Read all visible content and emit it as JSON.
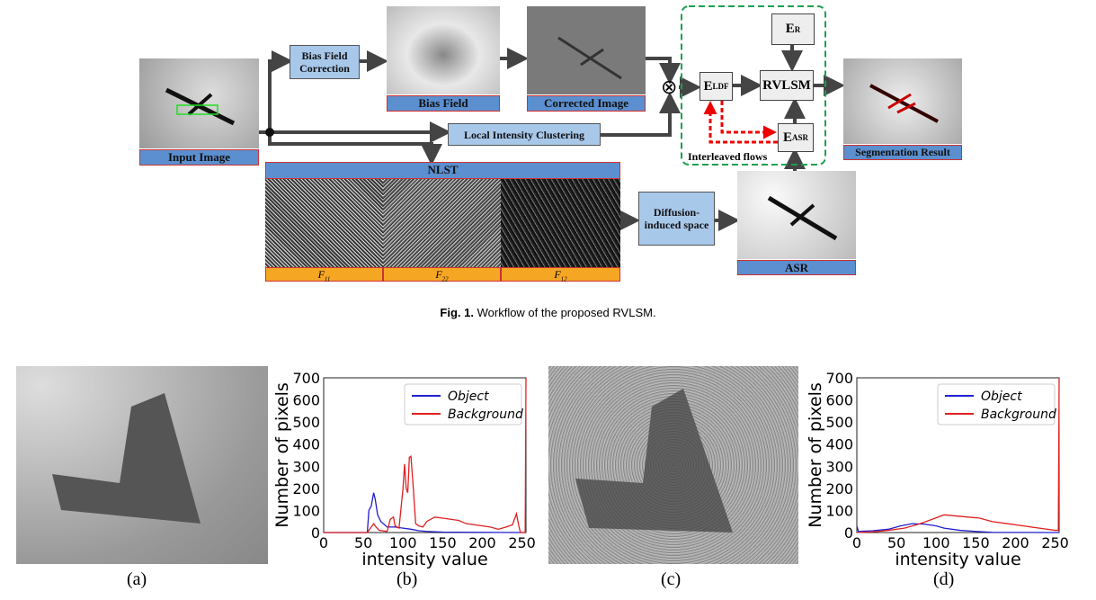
{
  "figure1": {
    "input_label": "Input Image",
    "bias_correction": "Bias Field Correction",
    "bias_field_label": "Bias Field",
    "corrected_label": "Corrected Image",
    "lic": "Local Intensity Clustering",
    "nlst": "NLST",
    "f_labels": [
      "F",
      "F",
      "F"
    ],
    "f_subs": [
      "11",
      "22",
      "12"
    ],
    "diffusion": "Diffusion-induced space",
    "asr_label": "ASR",
    "er": "E",
    "er_sup": "R",
    "eldf": "E",
    "eldf_sup": "LDF",
    "easr": "E",
    "easr_sup": "ASR",
    "rvlsm": "RVLSM",
    "interleaved": "Interleaved flows",
    "seg_label": "Segmentation Result",
    "otimes": "⊗",
    "caption_bold": "Fig. 1.",
    "caption": "Workflow of the proposed RVLSM."
  },
  "subfig_labels": [
    "(a)",
    "(b)",
    "(c)",
    "(d)"
  ],
  "chart_data": [
    {
      "type": "line",
      "title": "",
      "xlabel": "intensity value",
      "ylabel": "Number of pixels",
      "xlim": [
        0,
        255
      ],
      "ylim": [
        0,
        700
      ],
      "xticks": [
        0,
        50,
        100,
        150,
        200,
        250
      ],
      "yticks": [
        0,
        100,
        200,
        300,
        400,
        500,
        600,
        700
      ],
      "legend": "top-right",
      "series": [
        {
          "name": "Object",
          "color": "#1f1fd0",
          "points": [
            [
              0,
              0
            ],
            [
              55,
              0
            ],
            [
              57,
              100
            ],
            [
              60,
              120
            ],
            [
              63,
              180
            ],
            [
              65,
              150
            ],
            [
              68,
              80
            ],
            [
              72,
              50
            ],
            [
              80,
              25
            ],
            [
              90,
              25
            ],
            [
              100,
              20
            ],
            [
              110,
              15
            ],
            [
              120,
              8
            ],
            [
              130,
              5
            ],
            [
              150,
              2
            ],
            [
              250,
              0
            ],
            [
              255,
              0
            ]
          ]
        },
        {
          "name": "Background",
          "color": "#e02020",
          "points": [
            [
              0,
              0
            ],
            [
              55,
              0
            ],
            [
              60,
              25
            ],
            [
              63,
              40
            ],
            [
              66,
              25
            ],
            [
              70,
              10
            ],
            [
              80,
              5
            ],
            [
              84,
              60
            ],
            [
              88,
              70
            ],
            [
              90,
              30
            ],
            [
              95,
              20
            ],
            [
              100,
              200
            ],
            [
              102,
              310
            ],
            [
              104,
              200
            ],
            [
              106,
              180
            ],
            [
              108,
              340
            ],
            [
              110,
              345
            ],
            [
              113,
              200
            ],
            [
              116,
              40
            ],
            [
              120,
              30
            ],
            [
              125,
              25
            ],
            [
              130,
              50
            ],
            [
              140,
              70
            ],
            [
              150,
              65
            ],
            [
              160,
              60
            ],
            [
              170,
              55
            ],
            [
              180,
              40
            ],
            [
              190,
              35
            ],
            [
              200,
              30
            ],
            [
              210,
              25
            ],
            [
              220,
              15
            ],
            [
              230,
              25
            ],
            [
              238,
              35
            ],
            [
              243,
              85
            ],
            [
              246,
              30
            ],
            [
              248,
              0
            ],
            [
              254,
              0
            ],
            [
              255,
              700
            ]
          ]
        }
      ]
    },
    {
      "type": "line",
      "title": "",
      "xlabel": "intensity value",
      "ylabel": "Number of pixels",
      "xlim": [
        0,
        255
      ],
      "ylim": [
        0,
        700
      ],
      "xticks": [
        0,
        50,
        100,
        150,
        200,
        250
      ],
      "yticks": [
        0,
        100,
        200,
        300,
        400,
        500,
        600,
        700
      ],
      "legend": "top-right",
      "series": [
        {
          "name": "Object",
          "color": "#1f1fd0",
          "points": [
            [
              0,
              30
            ],
            [
              2,
              5
            ],
            [
              20,
              8
            ],
            [
              40,
              15
            ],
            [
              55,
              30
            ],
            [
              70,
              40
            ],
            [
              85,
              38
            ],
            [
              100,
              30
            ],
            [
              110,
              20
            ],
            [
              130,
              10
            ],
            [
              150,
              5
            ],
            [
              170,
              1
            ],
            [
              255,
              0
            ]
          ]
        },
        {
          "name": "Background",
          "color": "#e02020",
          "points": [
            [
              0,
              0
            ],
            [
              20,
              3
            ],
            [
              40,
              10
            ],
            [
              60,
              20
            ],
            [
              80,
              40
            ],
            [
              95,
              60
            ],
            [
              110,
              80
            ],
            [
              125,
              75
            ],
            [
              140,
              70
            ],
            [
              155,
              65
            ],
            [
              170,
              50
            ],
            [
              190,
              40
            ],
            [
              210,
              30
            ],
            [
              230,
              20
            ],
            [
              250,
              10
            ],
            [
              254,
              10
            ],
            [
              255,
              700
            ]
          ]
        }
      ]
    }
  ]
}
